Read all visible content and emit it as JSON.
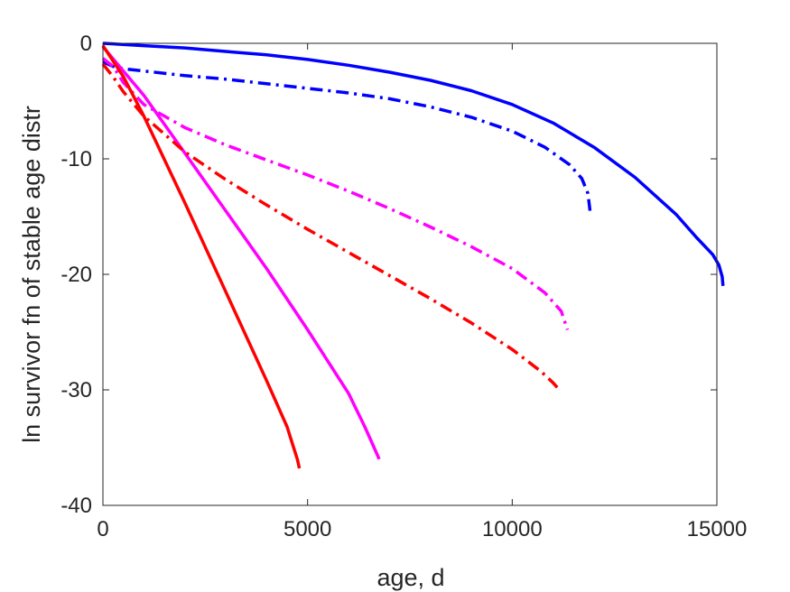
{
  "chart_data": {
    "type": "line",
    "title": "",
    "xlabel": "age, d",
    "ylabel": "ln survivor fn of stable age distr",
    "xlim": [
      0,
      15000
    ],
    "ylim": [
      -40,
      0
    ],
    "xticks": [
      0,
      5000,
      10000,
      15000
    ],
    "xtick_labels": [
      "0",
      "5000",
      "10000",
      "15000"
    ],
    "yticks": [
      0,
      -10,
      -20,
      -30,
      -40
    ],
    "ytick_labels": [
      "0",
      "-10",
      "-20",
      "-30",
      "-40"
    ],
    "grid": false,
    "legend": "none",
    "series": [
      {
        "color": "#0000ff",
        "style": "solid",
        "points": [
          [
            0,
            0
          ],
          [
            1000,
            -0.2
          ],
          [
            2000,
            -0.4
          ],
          [
            3000,
            -0.7
          ],
          [
            4000,
            -1.0
          ],
          [
            5000,
            -1.4
          ],
          [
            6000,
            -1.9
          ],
          [
            7000,
            -2.5
          ],
          [
            8000,
            -3.2
          ],
          [
            9000,
            -4.1
          ],
          [
            10000,
            -5.3
          ],
          [
            11000,
            -6.9
          ],
          [
            12000,
            -9.0
          ],
          [
            13000,
            -11.6
          ],
          [
            14000,
            -14.8
          ],
          [
            14500,
            -16.8
          ],
          [
            14900,
            -18.3
          ],
          [
            15050,
            -19.2
          ],
          [
            15130,
            -20.2
          ],
          [
            15150,
            -21.0
          ]
        ]
      },
      {
        "color": "#0000ff",
        "style": "dashdot",
        "points": [
          [
            0,
            -1.6
          ],
          [
            250,
            -2.0
          ],
          [
            500,
            -2.2
          ],
          [
            1000,
            -2.4
          ],
          [
            2000,
            -2.8
          ],
          [
            3000,
            -3.1
          ],
          [
            4000,
            -3.5
          ],
          [
            5000,
            -3.9
          ],
          [
            6000,
            -4.3
          ],
          [
            7000,
            -4.8
          ],
          [
            8000,
            -5.5
          ],
          [
            9000,
            -6.4
          ],
          [
            10000,
            -7.6
          ],
          [
            10800,
            -9.0
          ],
          [
            11400,
            -10.5
          ],
          [
            11700,
            -11.7
          ],
          [
            11850,
            -13.0
          ],
          [
            11900,
            -14.5
          ]
        ]
      },
      {
        "color": "#ff00ff",
        "style": "solid",
        "points": [
          [
            0,
            -0.3
          ],
          [
            1000,
            -4.5
          ],
          [
            2000,
            -9.5
          ],
          [
            3000,
            -14.5
          ],
          [
            4000,
            -19.5
          ],
          [
            5000,
            -24.8
          ],
          [
            6000,
            -30.3
          ],
          [
            6400,
            -33.2
          ],
          [
            6600,
            -34.8
          ],
          [
            6750,
            -36.0
          ]
        ]
      },
      {
        "color": "#ff00ff",
        "style": "dashdot",
        "points": [
          [
            0,
            -1.3
          ],
          [
            250,
            -2.0
          ],
          [
            500,
            -3.4
          ],
          [
            1000,
            -5.3
          ],
          [
            2000,
            -7.3
          ],
          [
            3000,
            -8.8
          ],
          [
            4000,
            -10.1
          ],
          [
            5000,
            -11.4
          ],
          [
            6000,
            -12.8
          ],
          [
            7000,
            -14.3
          ],
          [
            8000,
            -15.9
          ],
          [
            9000,
            -17.6
          ],
          [
            10000,
            -19.5
          ],
          [
            10800,
            -21.6
          ],
          [
            11200,
            -23.2
          ],
          [
            11350,
            -24.8
          ]
        ]
      },
      {
        "color": "#ff0000",
        "style": "solid",
        "points": [
          [
            0,
            -0.2
          ],
          [
            500,
            -2.9
          ],
          [
            1000,
            -6.3
          ],
          [
            2000,
            -13.8
          ],
          [
            3000,
            -21.5
          ],
          [
            4000,
            -29.2
          ],
          [
            4500,
            -33.2
          ],
          [
            4650,
            -34.9
          ],
          [
            4750,
            -36.0
          ],
          [
            4800,
            -36.8
          ]
        ]
      },
      {
        "color": "#ff0000",
        "style": "dashdot",
        "points": [
          [
            0,
            -1.8
          ],
          [
            250,
            -2.9
          ],
          [
            500,
            -4.2
          ],
          [
            1000,
            -6.3
          ],
          [
            2000,
            -9.4
          ],
          [
            3000,
            -11.8
          ],
          [
            4000,
            -14.0
          ],
          [
            5000,
            -16.1
          ],
          [
            6000,
            -18.1
          ],
          [
            7000,
            -20.1
          ],
          [
            8000,
            -22.1
          ],
          [
            9000,
            -24.2
          ],
          [
            10000,
            -26.5
          ],
          [
            10700,
            -28.4
          ],
          [
            11000,
            -29.4
          ],
          [
            11100,
            -29.8
          ]
        ]
      }
    ]
  }
}
